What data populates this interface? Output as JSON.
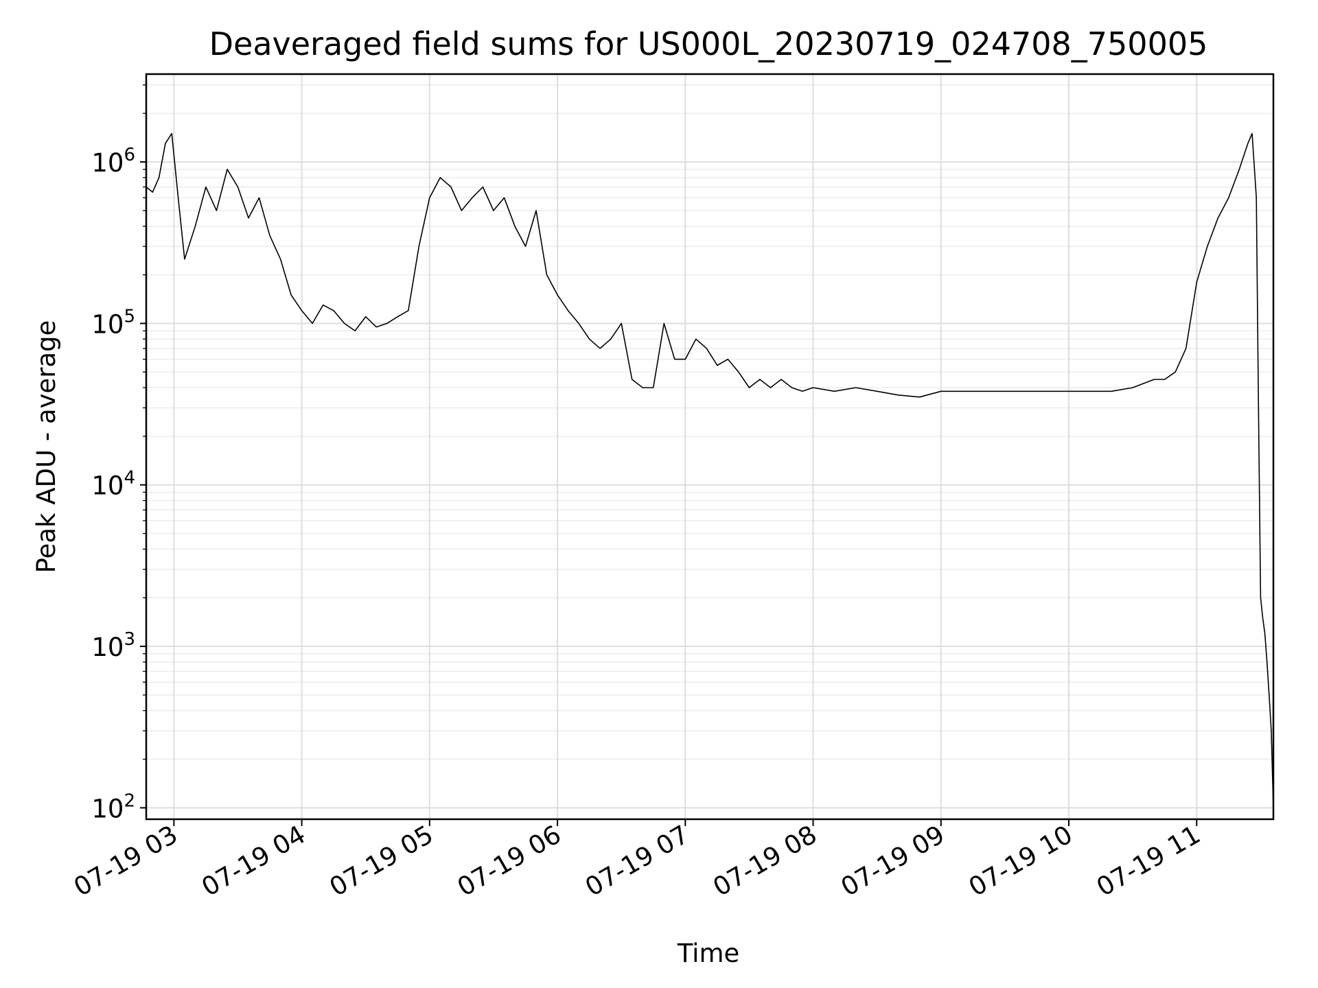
{
  "chart_data": {
    "type": "line",
    "title": "Deaveraged field sums for US000L_20230719_024708_750005",
    "xlabel": "Time",
    "ylabel": "Peak ADU - average",
    "yscale": "log",
    "ylim": [
      85,
      3500000
    ],
    "xlim": [
      "2023-07-19 02:47",
      "2023-07-19 11:36"
    ],
    "grid": true,
    "line_color": "#000000",
    "x_tick_labels": [
      "07-19 03",
      "07-19 04",
      "07-19 05",
      "07-19 06",
      "07-19 07",
      "07-19 08",
      "07-19 09",
      "07-19 10",
      "07-19 11"
    ],
    "x_ticks": [
      "2023-07-19 03:00",
      "2023-07-19 04:00",
      "2023-07-19 05:00",
      "2023-07-19 06:00",
      "2023-07-19 07:00",
      "2023-07-19 08:00",
      "2023-07-19 09:00",
      "2023-07-19 10:00",
      "2023-07-19 11:00"
    ],
    "y_tick_labels": [
      {
        "base": "10",
        "exp": "2",
        "value": 100
      },
      {
        "base": "10",
        "exp": "3",
        "value": 1000
      },
      {
        "base": "10",
        "exp": "4",
        "value": 10000
      },
      {
        "base": "10",
        "exp": "5",
        "value": 100000
      },
      {
        "base": "10",
        "exp": "6",
        "value": 1000000
      }
    ],
    "series": [
      {
        "x": [
          "2023-07-19 02:47",
          "2023-07-19 02:50",
          "2023-07-19 02:53",
          "2023-07-19 02:56",
          "2023-07-19 02:59",
          "2023-07-19 03:02",
          "2023-07-19 03:05",
          "2023-07-19 03:10",
          "2023-07-19 03:15",
          "2023-07-19 03:20",
          "2023-07-19 03:25",
          "2023-07-19 03:30",
          "2023-07-19 03:35",
          "2023-07-19 03:40",
          "2023-07-19 03:45",
          "2023-07-19 03:50",
          "2023-07-19 03:55",
          "2023-07-19 04:00",
          "2023-07-19 04:05",
          "2023-07-19 04:10",
          "2023-07-19 04:15",
          "2023-07-19 04:20",
          "2023-07-19 04:25",
          "2023-07-19 04:30",
          "2023-07-19 04:35",
          "2023-07-19 04:40",
          "2023-07-19 04:45",
          "2023-07-19 04:50",
          "2023-07-19 04:55",
          "2023-07-19 05:00",
          "2023-07-19 05:05",
          "2023-07-19 05:10",
          "2023-07-19 05:15",
          "2023-07-19 05:20",
          "2023-07-19 05:25",
          "2023-07-19 05:30",
          "2023-07-19 05:35",
          "2023-07-19 05:40",
          "2023-07-19 05:45",
          "2023-07-19 05:50",
          "2023-07-19 05:55",
          "2023-07-19 06:00",
          "2023-07-19 06:05",
          "2023-07-19 06:10",
          "2023-07-19 06:15",
          "2023-07-19 06:20",
          "2023-07-19 06:25",
          "2023-07-19 06:30",
          "2023-07-19 06:35",
          "2023-07-19 06:40",
          "2023-07-19 06:45",
          "2023-07-19 06:50",
          "2023-07-19 06:55",
          "2023-07-19 07:00",
          "2023-07-19 07:05",
          "2023-07-19 07:10",
          "2023-07-19 07:15",
          "2023-07-19 07:20",
          "2023-07-19 07:25",
          "2023-07-19 07:30",
          "2023-07-19 07:35",
          "2023-07-19 07:40",
          "2023-07-19 07:45",
          "2023-07-19 07:50",
          "2023-07-19 07:55",
          "2023-07-19 08:00",
          "2023-07-19 08:10",
          "2023-07-19 08:20",
          "2023-07-19 08:30",
          "2023-07-19 08:40",
          "2023-07-19 08:50",
          "2023-07-19 09:00",
          "2023-07-19 09:10",
          "2023-07-19 09:20",
          "2023-07-19 09:30",
          "2023-07-19 09:40",
          "2023-07-19 09:50",
          "2023-07-19 10:00",
          "2023-07-19 10:10",
          "2023-07-19 10:20",
          "2023-07-19 10:30",
          "2023-07-19 10:40",
          "2023-07-19 10:45",
          "2023-07-19 10:50",
          "2023-07-19 10:55",
          "2023-07-19 11:00",
          "2023-07-19 11:05",
          "2023-07-19 11:10",
          "2023-07-19 11:15",
          "2023-07-19 11:20",
          "2023-07-19 11:24",
          "2023-07-19 11:26",
          "2023-07-19 11:28",
          "2023-07-19 11:29",
          "2023-07-19 11:30",
          "2023-07-19 11:31",
          "2023-07-19 11:32",
          "2023-07-19 11:33",
          "2023-07-19 11:34",
          "2023-07-19 11:35",
          "2023-07-19 11:36"
        ],
        "y": [
          700000,
          650000,
          800000,
          1300000,
          1500000,
          600000,
          250000,
          400000,
          700000,
          500000,
          900000,
          700000,
          450000,
          600000,
          350000,
          250000,
          150000,
          120000,
          100000,
          130000,
          120000,
          100000,
          90000,
          110000,
          95000,
          100000,
          110000,
          120000,
          300000,
          600000,
          800000,
          700000,
          500000,
          600000,
          700000,
          500000,
          600000,
          400000,
          300000,
          500000,
          200000,
          150000,
          120000,
          100000,
          80000,
          70000,
          80000,
          100000,
          45000,
          40000,
          40000,
          100000,
          60000,
          60000,
          80000,
          70000,
          55000,
          60000,
          50000,
          40000,
          45000,
          40000,
          45000,
          40000,
          38000,
          40000,
          38000,
          40000,
          38000,
          36000,
          35000,
          38000,
          38000,
          38000,
          38000,
          38000,
          38000,
          38000,
          38000,
          38000,
          40000,
          45000,
          45000,
          50000,
          70000,
          180000,
          300000,
          450000,
          600000,
          900000,
          1300000,
          1500000,
          600000,
          30000,
          2000,
          1500,
          1200,
          800,
          500,
          300,
          100
        ]
      }
    ]
  }
}
